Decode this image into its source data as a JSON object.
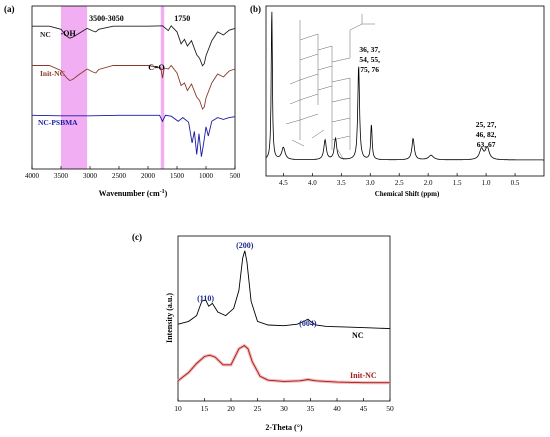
{
  "panels": {
    "a": "(a)",
    "b": "(b)",
    "c": "(c)"
  },
  "chart_data": [
    {
      "id": "a",
      "type": "line",
      "xlabel": "Wavenumber (cm",
      "xlabel_sup": "-1",
      "xlabel_end": ")",
      "xlim": [
        4000,
        500
      ],
      "xticks": [
        4000,
        3500,
        3000,
        2500,
        2000,
        1500,
        1000,
        500
      ],
      "highlight_bands": [
        {
          "from": 3500,
          "to": 3050,
          "label": "3500-3050",
          "color": "#f0a0f0"
        },
        {
          "from": 1780,
          "to": 1720,
          "label": "1750",
          "color": "#f0a0f0"
        }
      ],
      "annotations": [
        {
          "text": "-OH",
          "at": 3300
        },
        {
          "text": "C=O",
          "at": 1750
        }
      ],
      "series": [
        {
          "name": "NC",
          "color": "#202020",
          "x": [
            4000,
            3700,
            3500,
            3400,
            3350,
            3300,
            3200,
            3050,
            2950,
            2900,
            2850,
            2600,
            2000,
            1750,
            1650,
            1600,
            1500,
            1430,
            1370,
            1320,
            1250,
            1160,
            1110,
            1060,
            1030,
            1000,
            900,
            800,
            700,
            600,
            500
          ],
          "y": [
            0.95,
            0.95,
            0.88,
            0.72,
            0.68,
            0.7,
            0.78,
            0.9,
            0.84,
            0.82,
            0.88,
            0.95,
            0.95,
            0.96,
            0.85,
            0.96,
            0.82,
            0.55,
            0.65,
            0.5,
            0.62,
            0.3,
            0.22,
            0.05,
            0.1,
            0.28,
            0.62,
            0.82,
            0.75,
            0.86,
            0.9
          ]
        },
        {
          "name": "Init-NC",
          "color": "#8b3a2a",
          "x": [
            4000,
            3700,
            3500,
            3400,
            3350,
            3300,
            3200,
            3050,
            2950,
            2900,
            2850,
            2600,
            2000,
            1780,
            1750,
            1720,
            1650,
            1600,
            1500,
            1430,
            1370,
            1320,
            1250,
            1160,
            1110,
            1060,
            1030,
            1000,
            900,
            800,
            700,
            600,
            500
          ],
          "y": [
            0.95,
            0.95,
            0.85,
            0.7,
            0.65,
            0.67,
            0.76,
            0.88,
            0.82,
            0.8,
            0.87,
            0.95,
            0.95,
            0.9,
            0.7,
            0.9,
            0.88,
            0.95,
            0.8,
            0.55,
            0.6,
            0.45,
            0.58,
            0.32,
            0.25,
            0.08,
            0.12,
            0.3,
            0.6,
            0.78,
            0.72,
            0.84,
            0.88
          ]
        },
        {
          "name": "NC-PSBMA",
          "color": "#1a1aa8",
          "x": [
            4000,
            3500,
            3000,
            2500,
            2000,
            1800,
            1750,
            1700,
            1600,
            1480,
            1400,
            1300,
            1240,
            1200,
            1160,
            1120,
            1080,
            1040,
            1000,
            960,
            900,
            800,
            700,
            600,
            500
          ],
          "y": [
            0.95,
            0.94,
            0.94,
            0.95,
            0.95,
            0.95,
            0.82,
            0.95,
            0.93,
            0.82,
            0.9,
            0.8,
            0.35,
            0.6,
            0.1,
            0.55,
            0.05,
            0.35,
            0.7,
            0.5,
            0.82,
            0.9,
            0.86,
            0.9,
            0.92
          ]
        }
      ]
    },
    {
      "id": "b",
      "type": "line",
      "xlabel": "Chemical Shift (ppm)",
      "xlim": [
        4.8,
        0.0
      ],
      "xticks": [
        4.5,
        4.0,
        3.5,
        3.0,
        2.5,
        2.0,
        1.5,
        1.0,
        0.5
      ],
      "xtick_labels": [
        "4.5",
        "4.0",
        "3.5",
        "3.0",
        "2.5",
        "2.0",
        "1.5",
        "1.0",
        "0.5"
      ],
      "peak_labels": [
        {
          "lines": [
            "36, 37,",
            "54, 55,",
            "75, 76"
          ],
          "at": 3.2
        },
        {
          "lines": [
            "25, 27,",
            "46, 82,",
            "63, 67"
          ],
          "at": 1.0
        }
      ],
      "peaks": [
        {
          "pos": 4.7,
          "height": 1.0,
          "width": 0.012
        },
        {
          "pos": 4.5,
          "height": 0.08,
          "width": 0.035
        },
        {
          "pos": 3.78,
          "height": 0.13,
          "width": 0.025
        },
        {
          "pos": 3.6,
          "height": 0.14,
          "width": 0.025
        },
        {
          "pos": 3.2,
          "height": 0.62,
          "width": 0.018
        },
        {
          "pos": 2.98,
          "height": 0.23,
          "width": 0.015
        },
        {
          "pos": 2.26,
          "height": 0.14,
          "width": 0.025
        },
        {
          "pos": 1.95,
          "height": 0.03,
          "width": 0.05
        },
        {
          "pos": 1.08,
          "height": 0.07,
          "width": 0.04
        },
        {
          "pos": 0.98,
          "height": 0.08,
          "width": 0.04
        }
      ]
    },
    {
      "id": "c",
      "type": "line",
      "xlabel": "2-Theta (°)",
      "ylabel": "Intensity (a.u.)",
      "xlim": [
        10,
        50
      ],
      "xticks": [
        10,
        15,
        20,
        25,
        30,
        35,
        40,
        45,
        50
      ],
      "peak_labels": [
        {
          "text": "(110)",
          "at": 15.2
        },
        {
          "text": "(200)",
          "at": 22.6
        },
        {
          "text": "(004)",
          "at": 34.5
        }
      ],
      "series": [
        {
          "name": "NC",
          "color": "#000000",
          "x": [
            10,
            12,
            13.5,
            14.5,
            15.2,
            15.8,
            16.5,
            17.5,
            19,
            20.5,
            21.5,
            22.2,
            22.6,
            23,
            23.8,
            25,
            27,
            30,
            32.5,
            34,
            34.5,
            35,
            36,
            38,
            42,
            46,
            50
          ],
          "y": [
            0.08,
            0.12,
            0.2,
            0.4,
            0.42,
            0.33,
            0.37,
            0.25,
            0.2,
            0.3,
            0.55,
            1.0,
            1.1,
            0.95,
            0.4,
            0.12,
            0.07,
            0.06,
            0.08,
            0.13,
            0.15,
            0.12,
            0.07,
            0.05,
            0.04,
            0.03,
            0.02
          ]
        },
        {
          "name": "Init-NC",
          "color": "#a01c18",
          "x": [
            10,
            12,
            13.5,
            15,
            16,
            17,
            18.5,
            20,
            21.5,
            22.5,
            23.2,
            24,
            25.5,
            27,
            30,
            33,
            34.5,
            36,
            40,
            45,
            50
          ],
          "y": [
            0.05,
            0.18,
            0.32,
            0.43,
            0.45,
            0.42,
            0.3,
            0.3,
            0.55,
            0.6,
            0.55,
            0.35,
            0.12,
            0.06,
            0.04,
            0.05,
            0.07,
            0.05,
            0.03,
            0.02,
            0.02
          ]
        }
      ]
    }
  ]
}
